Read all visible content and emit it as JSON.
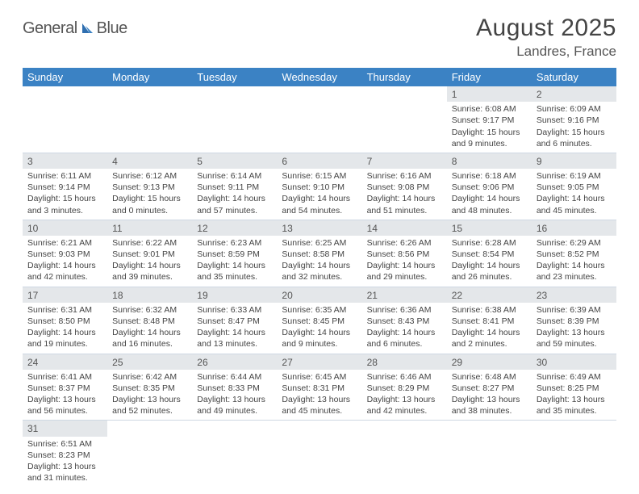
{
  "brand": {
    "part1": "General",
    "part2": "Blue"
  },
  "title": {
    "month": "August 2025",
    "location": "Landres, France"
  },
  "colors": {
    "header_bg": "#3b82c4",
    "header_fg": "#ffffff",
    "daynum_bg": "#e4e7ea",
    "rule": "#cfd8e3",
    "text": "#444444",
    "logo_blue": "#2f6fb0",
    "logo_gray": "#555555"
  },
  "weekdays": [
    "Sunday",
    "Monday",
    "Tuesday",
    "Wednesday",
    "Thursday",
    "Friday",
    "Saturday"
  ],
  "weeks": [
    [
      null,
      null,
      null,
      null,
      null,
      {
        "n": "1",
        "sr": "Sunrise: 6:08 AM",
        "ss": "Sunset: 9:17 PM",
        "d1": "Daylight: 15 hours",
        "d2": "and 9 minutes."
      },
      {
        "n": "2",
        "sr": "Sunrise: 6:09 AM",
        "ss": "Sunset: 9:16 PM",
        "d1": "Daylight: 15 hours",
        "d2": "and 6 minutes."
      }
    ],
    [
      {
        "n": "3",
        "sr": "Sunrise: 6:11 AM",
        "ss": "Sunset: 9:14 PM",
        "d1": "Daylight: 15 hours",
        "d2": "and 3 minutes."
      },
      {
        "n": "4",
        "sr": "Sunrise: 6:12 AM",
        "ss": "Sunset: 9:13 PM",
        "d1": "Daylight: 15 hours",
        "d2": "and 0 minutes."
      },
      {
        "n": "5",
        "sr": "Sunrise: 6:14 AM",
        "ss": "Sunset: 9:11 PM",
        "d1": "Daylight: 14 hours",
        "d2": "and 57 minutes."
      },
      {
        "n": "6",
        "sr": "Sunrise: 6:15 AM",
        "ss": "Sunset: 9:10 PM",
        "d1": "Daylight: 14 hours",
        "d2": "and 54 minutes."
      },
      {
        "n": "7",
        "sr": "Sunrise: 6:16 AM",
        "ss": "Sunset: 9:08 PM",
        "d1": "Daylight: 14 hours",
        "d2": "and 51 minutes."
      },
      {
        "n": "8",
        "sr": "Sunrise: 6:18 AM",
        "ss": "Sunset: 9:06 PM",
        "d1": "Daylight: 14 hours",
        "d2": "and 48 minutes."
      },
      {
        "n": "9",
        "sr": "Sunrise: 6:19 AM",
        "ss": "Sunset: 9:05 PM",
        "d1": "Daylight: 14 hours",
        "d2": "and 45 minutes."
      }
    ],
    [
      {
        "n": "10",
        "sr": "Sunrise: 6:21 AM",
        "ss": "Sunset: 9:03 PM",
        "d1": "Daylight: 14 hours",
        "d2": "and 42 minutes."
      },
      {
        "n": "11",
        "sr": "Sunrise: 6:22 AM",
        "ss": "Sunset: 9:01 PM",
        "d1": "Daylight: 14 hours",
        "d2": "and 39 minutes."
      },
      {
        "n": "12",
        "sr": "Sunrise: 6:23 AM",
        "ss": "Sunset: 8:59 PM",
        "d1": "Daylight: 14 hours",
        "d2": "and 35 minutes."
      },
      {
        "n": "13",
        "sr": "Sunrise: 6:25 AM",
        "ss": "Sunset: 8:58 PM",
        "d1": "Daylight: 14 hours",
        "d2": "and 32 minutes."
      },
      {
        "n": "14",
        "sr": "Sunrise: 6:26 AM",
        "ss": "Sunset: 8:56 PM",
        "d1": "Daylight: 14 hours",
        "d2": "and 29 minutes."
      },
      {
        "n": "15",
        "sr": "Sunrise: 6:28 AM",
        "ss": "Sunset: 8:54 PM",
        "d1": "Daylight: 14 hours",
        "d2": "and 26 minutes."
      },
      {
        "n": "16",
        "sr": "Sunrise: 6:29 AM",
        "ss": "Sunset: 8:52 PM",
        "d1": "Daylight: 14 hours",
        "d2": "and 23 minutes."
      }
    ],
    [
      {
        "n": "17",
        "sr": "Sunrise: 6:31 AM",
        "ss": "Sunset: 8:50 PM",
        "d1": "Daylight: 14 hours",
        "d2": "and 19 minutes."
      },
      {
        "n": "18",
        "sr": "Sunrise: 6:32 AM",
        "ss": "Sunset: 8:48 PM",
        "d1": "Daylight: 14 hours",
        "d2": "and 16 minutes."
      },
      {
        "n": "19",
        "sr": "Sunrise: 6:33 AM",
        "ss": "Sunset: 8:47 PM",
        "d1": "Daylight: 14 hours",
        "d2": "and 13 minutes."
      },
      {
        "n": "20",
        "sr": "Sunrise: 6:35 AM",
        "ss": "Sunset: 8:45 PM",
        "d1": "Daylight: 14 hours",
        "d2": "and 9 minutes."
      },
      {
        "n": "21",
        "sr": "Sunrise: 6:36 AM",
        "ss": "Sunset: 8:43 PM",
        "d1": "Daylight: 14 hours",
        "d2": "and 6 minutes."
      },
      {
        "n": "22",
        "sr": "Sunrise: 6:38 AM",
        "ss": "Sunset: 8:41 PM",
        "d1": "Daylight: 14 hours",
        "d2": "and 2 minutes."
      },
      {
        "n": "23",
        "sr": "Sunrise: 6:39 AM",
        "ss": "Sunset: 8:39 PM",
        "d1": "Daylight: 13 hours",
        "d2": "and 59 minutes."
      }
    ],
    [
      {
        "n": "24",
        "sr": "Sunrise: 6:41 AM",
        "ss": "Sunset: 8:37 PM",
        "d1": "Daylight: 13 hours",
        "d2": "and 56 minutes."
      },
      {
        "n": "25",
        "sr": "Sunrise: 6:42 AM",
        "ss": "Sunset: 8:35 PM",
        "d1": "Daylight: 13 hours",
        "d2": "and 52 minutes."
      },
      {
        "n": "26",
        "sr": "Sunrise: 6:44 AM",
        "ss": "Sunset: 8:33 PM",
        "d1": "Daylight: 13 hours",
        "d2": "and 49 minutes."
      },
      {
        "n": "27",
        "sr": "Sunrise: 6:45 AM",
        "ss": "Sunset: 8:31 PM",
        "d1": "Daylight: 13 hours",
        "d2": "and 45 minutes."
      },
      {
        "n": "28",
        "sr": "Sunrise: 6:46 AM",
        "ss": "Sunset: 8:29 PM",
        "d1": "Daylight: 13 hours",
        "d2": "and 42 minutes."
      },
      {
        "n": "29",
        "sr": "Sunrise: 6:48 AM",
        "ss": "Sunset: 8:27 PM",
        "d1": "Daylight: 13 hours",
        "d2": "and 38 minutes."
      },
      {
        "n": "30",
        "sr": "Sunrise: 6:49 AM",
        "ss": "Sunset: 8:25 PM",
        "d1": "Daylight: 13 hours",
        "d2": "and 35 minutes."
      }
    ],
    [
      {
        "n": "31",
        "sr": "Sunrise: 6:51 AM",
        "ss": "Sunset: 8:23 PM",
        "d1": "Daylight: 13 hours",
        "d2": "and 31 minutes."
      },
      null,
      null,
      null,
      null,
      null,
      null
    ]
  ]
}
